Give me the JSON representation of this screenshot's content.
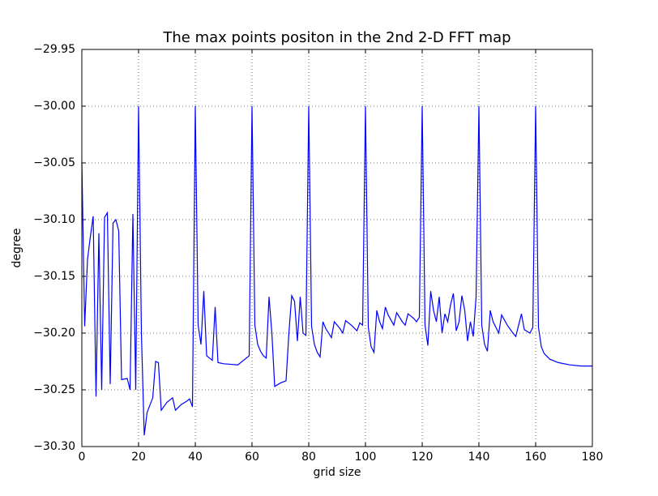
{
  "chart_data": {
    "type": "line",
    "title": "The max points positon in the 2nd 2-D FFT map",
    "x_label": "grid size",
    "y_label": "degree",
    "color": "#0000ff",
    "grid": true,
    "xlim": [
      0,
      180
    ],
    "xticks": [
      0,
      20,
      40,
      60,
      80,
      100,
      120,
      140,
      160,
      180
    ],
    "ylim": [
      -30.3,
      -29.95
    ],
    "yticks": [
      {
        "value": -30.3,
        "label": "−30.30"
      },
      {
        "value": -30.25,
        "label": "−30.25"
      },
      {
        "value": -30.2,
        "label": "−30.20"
      },
      {
        "value": -30.15,
        "label": "−30.15"
      },
      {
        "value": -30.1,
        "label": "−30.10"
      },
      {
        "value": -30.05,
        "label": "−30.05"
      },
      {
        "value": -30.0,
        "label": "−30.00"
      },
      {
        "value": -29.95,
        "label": "−29.95"
      }
    ],
    "x": [
      0,
      1,
      2,
      3,
      4,
      5,
      6,
      7,
      8,
      9,
      10,
      11,
      12,
      13,
      14,
      16,
      17,
      18,
      19,
      20,
      21,
      22,
      23,
      25,
      26,
      27,
      28,
      30,
      32,
      33,
      35,
      37,
      38,
      39,
      40,
      41,
      42,
      43,
      44,
      46,
      47,
      48,
      50,
      55,
      59,
      60,
      61,
      62,
      63,
      64,
      65,
      66,
      67,
      68,
      70,
      72,
      73,
      74,
      75,
      76,
      77,
      78,
      79,
      80,
      81,
      82,
      83,
      84,
      85,
      86,
      88,
      89,
      91,
      92,
      93,
      95,
      97,
      98,
      99,
      100,
      101,
      102,
      103,
      104,
      105,
      106,
      107,
      108,
      110,
      111,
      113,
      114,
      115,
      117,
      118,
      119,
      120,
      121,
      122,
      123,
      124,
      125,
      126,
      127,
      128,
      129,
      130,
      131,
      132,
      133,
      134,
      135,
      136,
      137,
      138,
      139,
      140,
      141,
      142,
      143,
      144,
      145,
      147,
      148,
      150,
      152,
      153,
      154,
      155,
      156,
      158,
      159,
      160,
      161,
      162,
      163,
      165,
      168,
      172,
      176,
      180
    ],
    "values": [
      -30.049,
      -30.194,
      -30.135,
      -30.115,
      -30.097,
      -30.256,
      -30.112,
      -30.25,
      -30.098,
      -30.094,
      -30.245,
      -30.103,
      -30.1,
      -30.11,
      -30.241,
      -30.24,
      -30.25,
      -30.095,
      -30.25,
      -30.0,
      -30.2,
      -30.29,
      -30.27,
      -30.257,
      -30.225,
      -30.226,
      -30.268,
      -30.261,
      -30.257,
      -30.268,
      -30.263,
      -30.26,
      -30.258,
      -30.265,
      -30.0,
      -30.193,
      -30.21,
      -30.163,
      -30.22,
      -30.224,
      -30.177,
      -30.226,
      -30.227,
      -30.228,
      -30.22,
      -30.0,
      -30.193,
      -30.21,
      -30.216,
      -30.22,
      -30.222,
      -30.168,
      -30.2,
      -30.247,
      -30.244,
      -30.242,
      -30.2,
      -30.167,
      -30.172,
      -30.207,
      -30.168,
      -30.2,
      -30.202,
      -30.0,
      -30.194,
      -30.21,
      -30.217,
      -30.221,
      -30.19,
      -30.196,
      -30.204,
      -30.19,
      -30.196,
      -30.2,
      -30.189,
      -30.193,
      -30.198,
      -30.191,
      -30.193,
      -30.0,
      -30.195,
      -30.212,
      -30.217,
      -30.18,
      -30.19,
      -30.196,
      -30.177,
      -30.184,
      -30.193,
      -30.182,
      -30.19,
      -30.193,
      -30.183,
      -30.187,
      -30.19,
      -30.186,
      -30.0,
      -30.193,
      -30.211,
      -30.163,
      -30.18,
      -30.19,
      -30.168,
      -30.2,
      -30.183,
      -30.19,
      -30.175,
      -30.165,
      -30.198,
      -30.19,
      -30.167,
      -30.18,
      -30.207,
      -30.19,
      -30.203,
      -30.168,
      -30.0,
      -30.193,
      -30.21,
      -30.216,
      -30.18,
      -30.19,
      -30.2,
      -30.184,
      -30.193,
      -30.2,
      -30.203,
      -30.193,
      -30.183,
      -30.197,
      -30.2,
      -30.195,
      -30.0,
      -30.195,
      -30.212,
      -30.218,
      -30.223,
      -30.226,
      -30.228,
      -30.229,
      -30.229
    ]
  }
}
